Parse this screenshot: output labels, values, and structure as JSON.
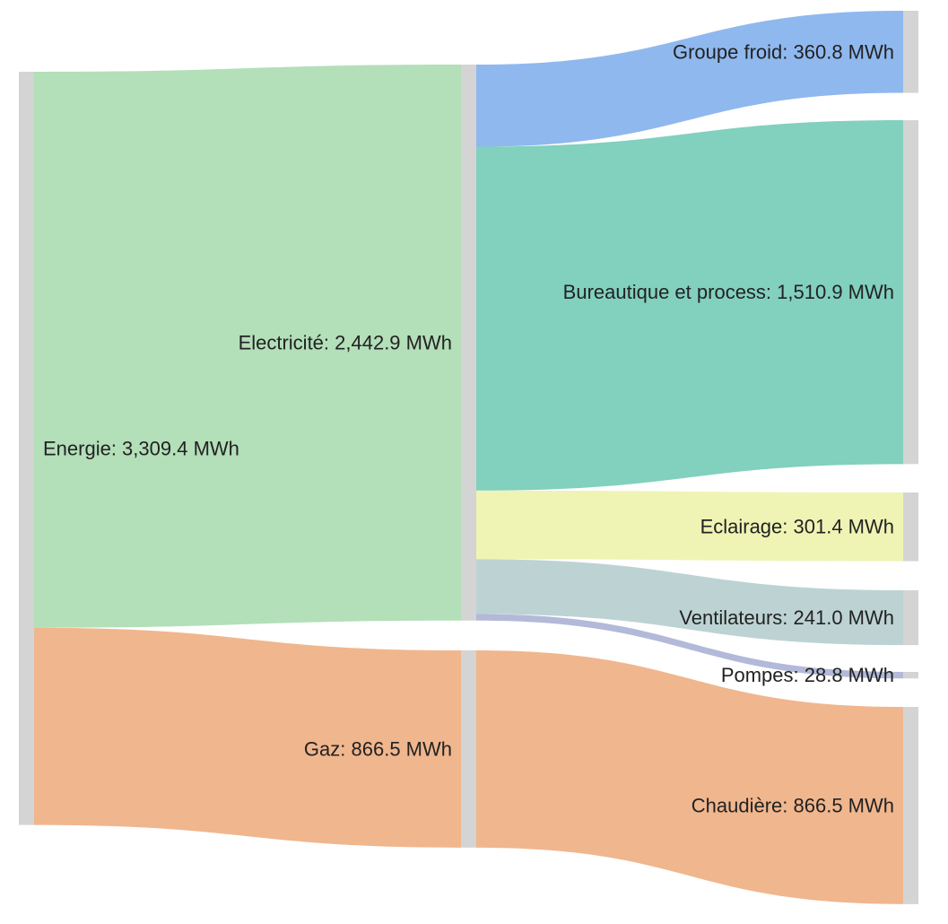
{
  "chart_data": {
    "type": "sankey",
    "unit": "MWh",
    "node_color": "#d4d4d4",
    "nodes": [
      {
        "id": "energie",
        "label": "Energie: 3,309.4 MWh",
        "value": 3309.4
      },
      {
        "id": "electricite",
        "label": "Electricité: 2,442.9 MWh",
        "value": 2442.9
      },
      {
        "id": "gaz",
        "label": "Gaz: 866.5 MWh",
        "value": 866.5
      },
      {
        "id": "groupe_froid",
        "label": "Groupe froid: 360.8 MWh",
        "value": 360.8
      },
      {
        "id": "bureautique",
        "label": "Bureautique et process: 1,510.9 MWh",
        "value": 1510.9
      },
      {
        "id": "eclairage",
        "label": "Eclairage: 301.4 MWh",
        "value": 301.4
      },
      {
        "id": "ventilateurs",
        "label": "Ventilateurs: 241.0 MWh",
        "value": 241.0
      },
      {
        "id": "pompes",
        "label": "Pompes: 28.8 MWh",
        "value": 28.8
      },
      {
        "id": "chaudiere",
        "label": "Chaudière: 866.5 MWh",
        "value": 866.5
      }
    ],
    "links": [
      {
        "source": "energie",
        "target": "electricite",
        "value": 2442.9,
        "color": "#b3dfb9"
      },
      {
        "source": "energie",
        "target": "gaz",
        "value": 866.5,
        "color": "#f0b68e"
      },
      {
        "source": "electricite",
        "target": "groupe_froid",
        "value": 360.8,
        "color": "#8fb8ee"
      },
      {
        "source": "electricite",
        "target": "bureautique",
        "value": 1510.9,
        "color": "#82d0be"
      },
      {
        "source": "electricite",
        "target": "eclairage",
        "value": 301.4,
        "color": "#eff4b4"
      },
      {
        "source": "electricite",
        "target": "ventilateurs",
        "value": 241.0,
        "color": "#bdd3d3"
      },
      {
        "source": "electricite",
        "target": "pompes",
        "value": 28.8,
        "color": "#b3b9d8"
      },
      {
        "source": "gaz",
        "target": "chaudiere",
        "value": 866.5,
        "color": "#f0b68e"
      }
    ]
  }
}
